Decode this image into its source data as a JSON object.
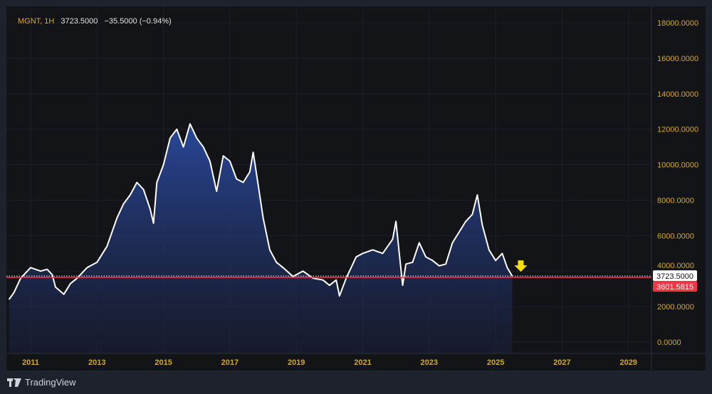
{
  "legend": {
    "symbol": "MGNT, 1H",
    "price": "3723.5000",
    "change": "−35.5000 (−0.94%)"
  },
  "brand": {
    "name": "TradingView"
  },
  "colors": {
    "axis_text": "#d4a72c",
    "line": "#ffffff",
    "fill_top": "#2a4aa0",
    "last_line": "#f23645",
    "arrow": "#f5e000"
  },
  "chart_data": {
    "type": "area",
    "title": "MGNT, 1H",
    "ylim": [
      0,
      18000
    ],
    "xlim": [
      2010.35,
      2029.8
    ],
    "yticks": [
      "0.0000",
      "2000.0000",
      "4000.0000",
      "6000.0000",
      "8000.0000",
      "10000.0000",
      "12000.0000",
      "14000.0000",
      "16000.0000",
      "18000.0000"
    ],
    "ytick_values": [
      0,
      2000,
      4000,
      6000,
      8000,
      10000,
      12000,
      14000,
      16000,
      18000
    ],
    "xticks": [
      "2011",
      "2013",
      "2015",
      "2017",
      "2019",
      "2021",
      "2023",
      "2025",
      "2027",
      "2029"
    ],
    "xtick_values": [
      2011,
      2013,
      2015,
      2017,
      2019,
      2021,
      2023,
      2025,
      2027,
      2029
    ],
    "price_labels": {
      "last": "3723.5000",
      "line": "3601.5815"
    },
    "last_value": 3723.5,
    "line_value": 3601.5815,
    "x": [
      2010.35,
      2010.5,
      2010.7,
      2011.0,
      2011.3,
      2011.5,
      2011.65,
      2011.75,
      2012.0,
      2012.2,
      2012.4,
      2012.7,
      2013.0,
      2013.3,
      2013.6,
      2013.8,
      2014.0,
      2014.2,
      2014.4,
      2014.6,
      2014.7,
      2014.8,
      2015.0,
      2015.2,
      2015.4,
      2015.6,
      2015.8,
      2016.0,
      2016.2,
      2016.4,
      2016.6,
      2016.8,
      2017.0,
      2017.2,
      2017.4,
      2017.6,
      2017.7,
      2017.8,
      2018.0,
      2018.2,
      2018.4,
      2018.6,
      2018.9,
      2019.2,
      2019.5,
      2019.8,
      2020.0,
      2020.2,
      2020.3,
      2020.5,
      2020.8,
      2021.0,
      2021.3,
      2021.6,
      2021.9,
      2022.0,
      2022.1,
      2022.2,
      2022.3,
      2022.5,
      2022.7,
      2022.9,
      2023.1,
      2023.3,
      2023.5,
      2023.7,
      2023.9,
      2024.1,
      2024.3,
      2024.45,
      2024.6,
      2024.8,
      2025.0,
      2025.2,
      2025.35,
      2025.5
    ],
    "values": [
      2400,
      2800,
      3600,
      4200,
      4000,
      4100,
      3800,
      3100,
      2700,
      3300,
      3600,
      4200,
      4500,
      5400,
      7000,
      7800,
      8300,
      9000,
      8600,
      7500,
      6700,
      9000,
      10000,
      11500,
      12000,
      11000,
      12300,
      11500,
      11000,
      10200,
      8500,
      10500,
      10200,
      9200,
      9000,
      9600,
      10700,
      9500,
      7000,
      5200,
      4500,
      4200,
      3700,
      4000,
      3600,
      3500,
      3200,
      3500,
      2600,
      3600,
      4800,
      5000,
      5200,
      5000,
      5800,
      6800,
      5000,
      3200,
      4400,
      4500,
      5600,
      4800,
      4600,
      4300,
      4400,
      5600,
      6200,
      6800,
      7200,
      8300,
      6600,
      5200,
      4600,
      5000,
      4200,
      3723.5
    ]
  }
}
